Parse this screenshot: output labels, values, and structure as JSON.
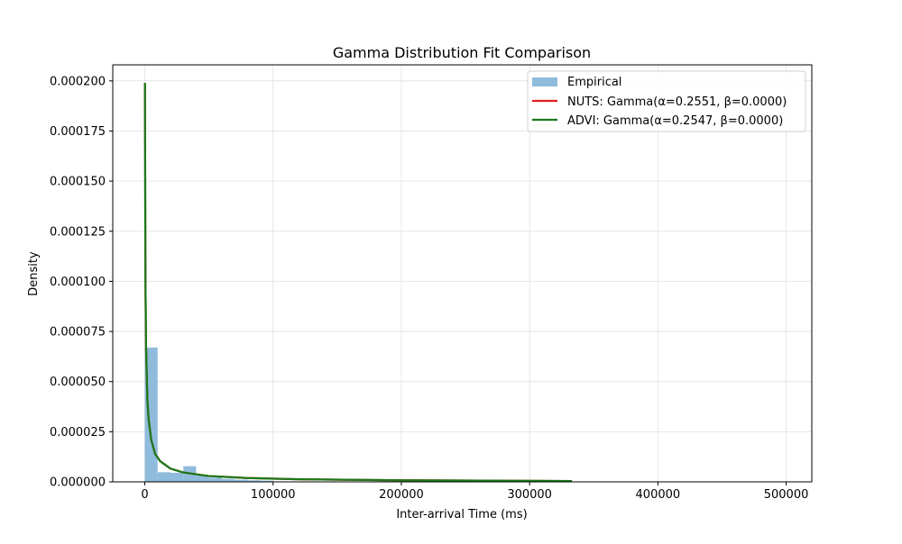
{
  "chart_data": {
    "type": "bar",
    "title": "Gamma Distribution Fit Comparison",
    "xlabel": "Inter-arrival Time (ms)",
    "ylabel": "Density",
    "xlim": [
      -25000,
      520000
    ],
    "ylim": [
      0,
      0.000208
    ],
    "x_ticks": [
      0,
      100000,
      200000,
      300000,
      400000,
      500000
    ],
    "x_tick_labels": [
      "0",
      "100000",
      "200000",
      "300000",
      "400000",
      "500000"
    ],
    "y_ticks": [
      0,
      2.5e-05,
      5e-05,
      7.5e-05,
      0.0001,
      0.000125,
      0.00015,
      0.000175,
      0.0002
    ],
    "y_tick_labels": [
      "0.000000",
      "0.000025",
      "0.000050",
      "0.000075",
      "0.000100",
      "0.000125",
      "0.000150",
      "0.000175",
      "0.000200"
    ],
    "grid": true,
    "legend_position": "top-right",
    "histogram": {
      "name": "Empirical",
      "color": "#8fbcdc",
      "bin_edges": [
        0,
        10000,
        20000,
        30000,
        40000,
        50000,
        60000,
        70000,
        80000,
        90000,
        100000
      ],
      "values": [
        6.7e-05,
        4.8e-06,
        4.5e-06,
        7.8e-06,
        3.2e-06,
        2.1e-06,
        1.5e-06,
        1.1e-06,
        8e-07,
        6e-07
      ]
    },
    "series": [
      {
        "name": "NUTS: Gamma(α=0.2551, β=0.0000)",
        "color": "#e31a1c",
        "x": [
          100,
          500,
          1000,
          2000,
          3000,
          5000,
          8000,
          12000,
          20000,
          30000,
          50000,
          80000,
          120000,
          200000,
          300000,
          333000
        ],
        "y": [
          0.000199,
          0.0001,
          6.6e-05,
          4.1e-05,
          3.1e-05,
          2.1e-05,
          1.4e-05,
          1.03e-05,
          6.6e-06,
          4.7e-06,
          2.9e-06,
          1.9e-06,
          1.3e-06,
          8e-07,
          5e-07,
          4e-07
        ]
      },
      {
        "name": "ADVI: Gamma(α=0.2547, β=0.0000)",
        "color": "#1a7a1a",
        "x": [
          100,
          500,
          1000,
          2000,
          3000,
          5000,
          8000,
          12000,
          20000,
          30000,
          50000,
          80000,
          120000,
          200000,
          300000,
          333000
        ],
        "y": [
          0.000199,
          0.0001,
          6.6e-05,
          4.1e-05,
          3.1e-05,
          2.1e-05,
          1.4e-05,
          1.03e-05,
          6.6e-06,
          4.7e-06,
          2.9e-06,
          1.9e-06,
          1.3e-06,
          8e-07,
          5e-07,
          4e-07
        ]
      }
    ]
  }
}
